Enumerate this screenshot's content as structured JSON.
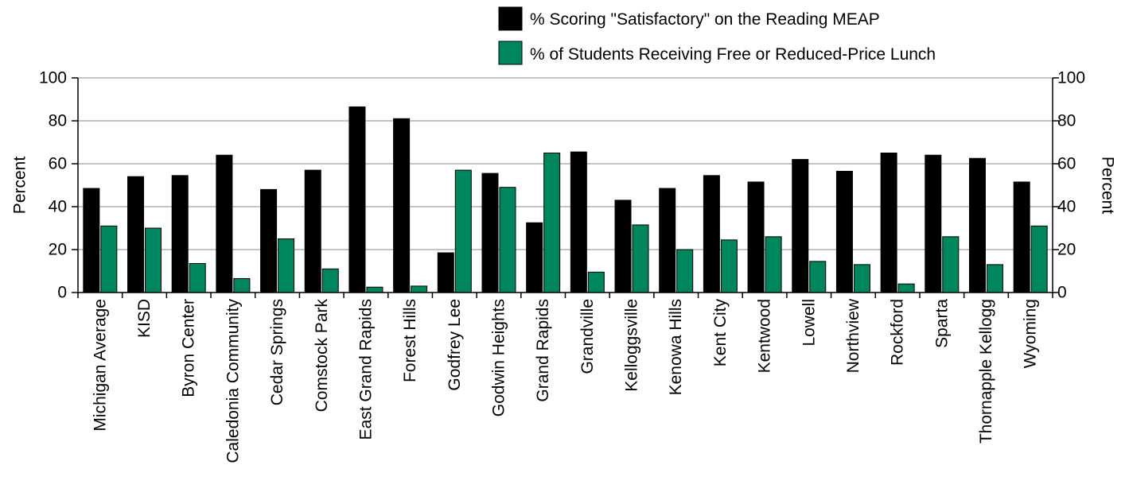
{
  "colors": {
    "series_reading": "#000000",
    "series_lunch": "#00865e",
    "gridline": "#888888",
    "axis": "#000000"
  },
  "chart_data": {
    "type": "bar",
    "categories": [
      "Michigan Average",
      "KISD",
      "Byron Center",
      "Caledonia Community",
      "Cedar Springs",
      "Comstock Park",
      "East Grand Rapids",
      "Forest Hills",
      "Godfrey Lee",
      "Godwin Heights",
      "Grand Rapids",
      "Grandville",
      "Kelloggsville",
      "Kenowa Hills",
      "Kent City",
      "Kentwood",
      "Lowell",
      "Northview",
      "Rockford",
      "Sparta",
      "Thornapple Kellogg",
      "Wyoming"
    ],
    "series": [
      {
        "name": "% Scoring \"Satisfactory\" on the Reading MEAP",
        "values": [
          48.5,
          54,
          54.5,
          64,
          48,
          57,
          86.5,
          81,
          18.5,
          55.5,
          32.5,
          65.5,
          43,
          48.5,
          54.5,
          51.5,
          62,
          56.5,
          65,
          64,
          62.5,
          51.5
        ]
      },
      {
        "name": "% of Students Receiving Free or Reduced-Price Lunch",
        "values": [
          31,
          30,
          13.5,
          6.5,
          25,
          11,
          2.5,
          3,
          57,
          49,
          65,
          9.5,
          31.5,
          20,
          24.5,
          26,
          14.5,
          13,
          4,
          26,
          13,
          31
        ]
      }
    ],
    "ylabel": "Percent",
    "y2label": "Percent",
    "ylim": [
      0,
      100
    ],
    "yticks": [
      0,
      20,
      40,
      60,
      80,
      100
    ],
    "grid": true,
    "legend_position": "top-right"
  }
}
